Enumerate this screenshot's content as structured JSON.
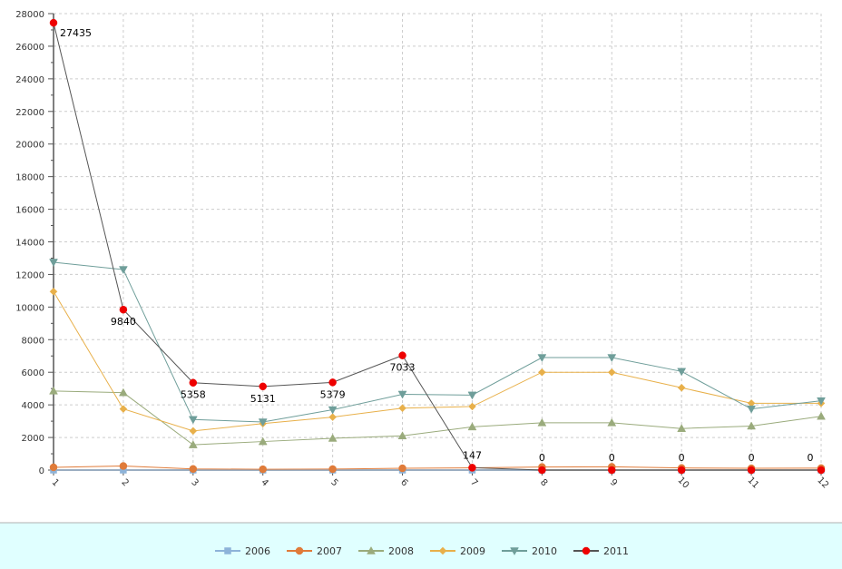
{
  "chart_data": {
    "type": "line",
    "x": [
      "1",
      "2",
      "3",
      "4",
      "5",
      "6",
      "7",
      "8",
      "9",
      "10",
      "11",
      "12"
    ],
    "x_tick_labels": [
      "1",
      "2",
      "3",
      "4",
      "5",
      "6",
      "7",
      "8",
      "9",
      "10",
      "11",
      "12"
    ],
    "ylim": [
      0,
      28000
    ],
    "y_ticks": [
      0,
      2000,
      4000,
      6000,
      8000,
      10000,
      12000,
      14000,
      16000,
      18000,
      20000,
      22000,
      24000,
      26000,
      28000
    ],
    "grid": true,
    "legend": "bottom",
    "series": [
      {
        "name": "2006",
        "color": "#8db3d9",
        "marker": "square",
        "values": [
          0,
          0,
          0,
          0,
          0,
          0,
          0,
          0,
          0,
          0,
          0,
          0
        ]
      },
      {
        "name": "2007",
        "color": "#e07b39",
        "marker": "circle",
        "values": [
          170,
          250,
          70,
          50,
          60,
          110,
          140,
          190,
          200,
          130,
          110,
          120
        ]
      },
      {
        "name": "2008",
        "color": "#9aab7c",
        "marker": "triangle-up",
        "values": [
          4850,
          4750,
          1550,
          1750,
          1950,
          2100,
          2650,
          2900,
          2900,
          2550,
          2700,
          3300
        ]
      },
      {
        "name": "2009",
        "color": "#e8b04a",
        "marker": "diamond",
        "values": [
          10950,
          3750,
          2400,
          2850,
          3250,
          3800,
          3900,
          6000,
          6000,
          5050,
          4100,
          4100
        ]
      },
      {
        "name": "2010",
        "color": "#6f9e9a",
        "marker": "triangle-down",
        "values": [
          12750,
          12300,
          3100,
          2950,
          3700,
          4650,
          4600,
          6900,
          6900,
          6050,
          3750,
          4250
        ]
      },
      {
        "name": "2011",
        "color": "#ee0000",
        "line_color": "#555555",
        "marker": "circle",
        "values": [
          27435,
          9840,
          5358,
          5131,
          5379,
          7033,
          147,
          0,
          0,
          0,
          0,
          0
        ],
        "data_labels": [
          "27435",
          "9840",
          "5358",
          "5131",
          "5379",
          "7033",
          "147",
          "0",
          "0",
          "0",
          "0",
          "0"
        ]
      }
    ]
  }
}
